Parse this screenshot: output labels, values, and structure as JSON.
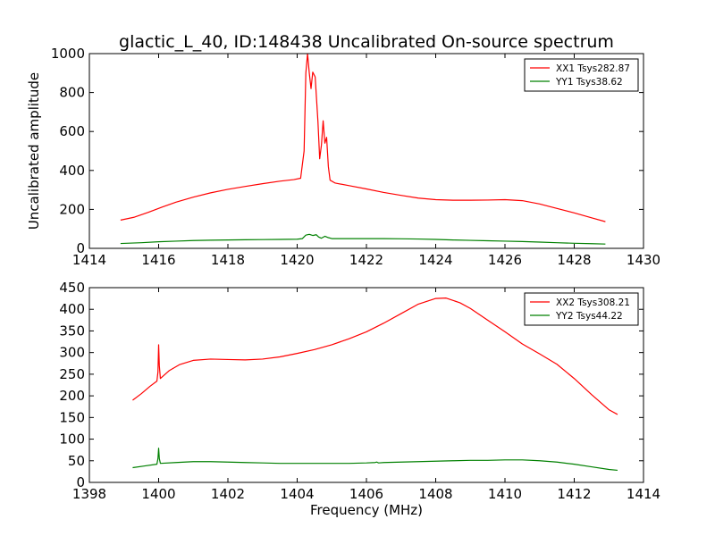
{
  "chart_data": [
    {
      "type": "line",
      "title": "glactic_L_40, ID:148438 Uncalibrated On-source spectrum",
      "xlabel": "",
      "ylabel": "Uncalibrated amplitude",
      "xlim": [
        1414,
        1430
      ],
      "ylim": [
        0,
        1000
      ],
      "xticks": [
        1414,
        1416,
        1418,
        1420,
        1422,
        1424,
        1426,
        1428,
        1430
      ],
      "yticks": [
        0,
        200,
        400,
        600,
        800,
        1000
      ],
      "grid": false,
      "legend_position": "top-right",
      "series": [
        {
          "name": "XX1 Tsys282.87",
          "color": "#ff0000",
          "points": [
            [
              1414.9,
              145
            ],
            [
              1415.3,
              160
            ],
            [
              1415.7,
              185
            ],
            [
              1416.1,
              212
            ],
            [
              1416.5,
              237
            ],
            [
              1417.0,
              263
            ],
            [
              1417.5,
              285
            ],
            [
              1418.0,
              303
            ],
            [
              1418.5,
              318
            ],
            [
              1419.0,
              332
            ],
            [
              1419.5,
              345
            ],
            [
              1419.9,
              353
            ],
            [
              1420.1,
              360
            ],
            [
              1420.2,
              500
            ],
            [
              1420.25,
              900
            ],
            [
              1420.3,
              1000
            ],
            [
              1420.35,
              900
            ],
            [
              1420.4,
              820
            ],
            [
              1420.45,
              905
            ],
            [
              1420.52,
              880
            ],
            [
              1420.6,
              650
            ],
            [
              1420.65,
              460
            ],
            [
              1420.7,
              530
            ],
            [
              1420.75,
              655
            ],
            [
              1420.8,
              540
            ],
            [
              1420.85,
              570
            ],
            [
              1420.9,
              420
            ],
            [
              1420.95,
              350
            ],
            [
              1421.1,
              335
            ],
            [
              1421.5,
              322
            ],
            [
              1422.0,
              305
            ],
            [
              1422.5,
              287
            ],
            [
              1423.0,
              272
            ],
            [
              1423.5,
              258
            ],
            [
              1424.0,
              250
            ],
            [
              1424.5,
              247
            ],
            [
              1425.0,
              247
            ],
            [
              1425.5,
              248
            ],
            [
              1426.0,
              250
            ],
            [
              1426.5,
              245
            ],
            [
              1427.0,
              228
            ],
            [
              1427.5,
              205
            ],
            [
              1428.0,
              182
            ],
            [
              1428.5,
              157
            ],
            [
              1428.9,
              137
            ]
          ]
        },
        {
          "name": "YY1 Tsys38.62",
          "color": "#008000",
          "points": [
            [
              1414.9,
              25
            ],
            [
              1415.5,
              29
            ],
            [
              1416.0,
              34
            ],
            [
              1416.5,
              37
            ],
            [
              1417.0,
              40
            ],
            [
              1417.5,
              42
            ],
            [
              1418.0,
              43
            ],
            [
              1418.5,
              44
            ],
            [
              1419.0,
              45
            ],
            [
              1419.5,
              46
            ],
            [
              1420.0,
              47
            ],
            [
              1420.15,
              50
            ],
            [
              1420.25,
              68
            ],
            [
              1420.35,
              72
            ],
            [
              1420.45,
              66
            ],
            [
              1420.55,
              70
            ],
            [
              1420.62,
              58
            ],
            [
              1420.7,
              52
            ],
            [
              1420.8,
              62
            ],
            [
              1420.9,
              55
            ],
            [
              1421.0,
              50
            ],
            [
              1421.5,
              50
            ],
            [
              1422.0,
              50
            ],
            [
              1422.5,
              50
            ],
            [
              1423.0,
              49
            ],
            [
              1423.5,
              48
            ],
            [
              1424.0,
              46
            ],
            [
              1424.5,
              43
            ],
            [
              1425.0,
              41
            ],
            [
              1425.5,
              39
            ],
            [
              1426.0,
              37
            ],
            [
              1426.5,
              35
            ],
            [
              1427.0,
              32
            ],
            [
              1427.5,
              29
            ],
            [
              1428.0,
              26
            ],
            [
              1428.5,
              24
            ],
            [
              1428.9,
              22
            ]
          ]
        }
      ]
    },
    {
      "type": "line",
      "title": "",
      "xlabel": "Frequency (MHz)",
      "ylabel": "",
      "xlim": [
        1398,
        1414
      ],
      "ylim": [
        0,
        450
      ],
      "xticks": [
        1398,
        1400,
        1402,
        1404,
        1406,
        1408,
        1410,
        1412,
        1414
      ],
      "yticks": [
        0,
        50,
        100,
        150,
        200,
        250,
        300,
        350,
        400,
        450
      ],
      "grid": false,
      "legend_position": "top-right",
      "series": [
        {
          "name": "XX2 Tsys308.21",
          "color": "#ff0000",
          "points": [
            [
              1399.25,
              190
            ],
            [
              1399.5,
              205
            ],
            [
              1399.75,
              222
            ],
            [
              1399.95,
              234
            ],
            [
              1399.98,
              255
            ],
            [
              1400.0,
              318
            ],
            [
              1400.02,
              270
            ],
            [
              1400.05,
              240
            ],
            [
              1400.3,
              258
            ],
            [
              1400.6,
              272
            ],
            [
              1401.0,
              282
            ],
            [
              1401.5,
              285
            ],
            [
              1402.0,
              284
            ],
            [
              1402.5,
              283
            ],
            [
              1403.0,
              285
            ],
            [
              1403.5,
              290
            ],
            [
              1404.0,
              298
            ],
            [
              1404.5,
              307
            ],
            [
              1405.0,
              318
            ],
            [
              1405.5,
              332
            ],
            [
              1406.0,
              348
            ],
            [
              1406.5,
              368
            ],
            [
              1407.0,
              390
            ],
            [
              1407.5,
              412
            ],
            [
              1408.0,
              425
            ],
            [
              1408.3,
              426
            ],
            [
              1408.7,
              415
            ],
            [
              1409.0,
              402
            ],
            [
              1409.5,
              375
            ],
            [
              1410.0,
              348
            ],
            [
              1410.5,
              320
            ],
            [
              1411.0,
              297
            ],
            [
              1411.5,
              273
            ],
            [
              1412.0,
              240
            ],
            [
              1412.5,
              203
            ],
            [
              1413.0,
              168
            ],
            [
              1413.25,
              157
            ]
          ]
        },
        {
          "name": "YY2 Tsys44.22",
          "color": "#008000",
          "points": [
            [
              1399.25,
              34
            ],
            [
              1399.6,
              38
            ],
            [
              1399.95,
              42
            ],
            [
              1399.98,
              55
            ],
            [
              1400.0,
              79
            ],
            [
              1400.02,
              55
            ],
            [
              1400.05,
              44
            ],
            [
              1400.5,
              46
            ],
            [
              1401.0,
              48
            ],
            [
              1401.5,
              48
            ],
            [
              1402.0,
              47
            ],
            [
              1402.5,
              46
            ],
            [
              1403.0,
              45
            ],
            [
              1403.5,
              44
            ],
            [
              1404.0,
              44
            ],
            [
              1404.5,
              44
            ],
            [
              1405.0,
              44
            ],
            [
              1405.5,
              44
            ],
            [
              1406.0,
              45
            ],
            [
              1406.25,
              46
            ],
            [
              1406.3,
              47
            ],
            [
              1406.35,
              45
            ],
            [
              1406.5,
              46
            ],
            [
              1407.0,
              47
            ],
            [
              1407.5,
              48
            ],
            [
              1408.0,
              49
            ],
            [
              1408.5,
              50
            ],
            [
              1409.0,
              51
            ],
            [
              1409.5,
              51
            ],
            [
              1410.0,
              52
            ],
            [
              1410.5,
              52
            ],
            [
              1411.0,
              50
            ],
            [
              1411.5,
              47
            ],
            [
              1412.0,
              42
            ],
            [
              1412.5,
              36
            ],
            [
              1413.0,
              30
            ],
            [
              1413.25,
              28
            ]
          ]
        }
      ]
    }
  ]
}
